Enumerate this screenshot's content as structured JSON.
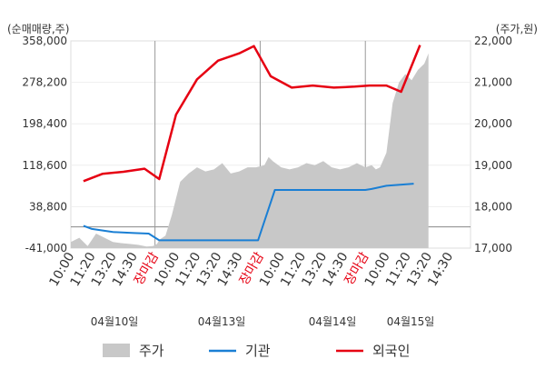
{
  "chart_data": {
    "type": "line",
    "y_left_unit": "(순매매량,주)",
    "y_right_unit": "(주가,원)",
    "y_left_ticks": [
      "358,000",
      "278,200",
      "198,400",
      "118,600",
      "38,800",
      "-41,000"
    ],
    "y_left_range": [
      -41000,
      358000
    ],
    "y_right_ticks": [
      "22,000",
      "21,000",
      "20,000",
      "19,000",
      "18,000",
      "17,000"
    ],
    "y_right_range": [
      17000,
      22000
    ],
    "x_ticks": [
      "10:00",
      "11:20",
      "13:20",
      "14:30",
      "장마감",
      "10:00",
      "11:20",
      "13:20",
      "14:30",
      "장마감",
      "10:00",
      "11:20",
      "13:20",
      "14:30",
      "장마감",
      "10:00",
      "11:20",
      "13:20",
      "14:30"
    ],
    "dates": [
      "04월10일",
      "04월13일",
      "04월14일",
      "04월15일"
    ],
    "legend": [
      "주가",
      "기관",
      "외국인"
    ],
    "colors": {
      "price": "#c8c8c8",
      "institution": "#1a7fd4",
      "foreign": "#e60012",
      "close_label": "#e60012"
    },
    "series": [
      {
        "name": "기관",
        "x": [
          0.6,
          1.0,
          2.0,
          3.0,
          3.7,
          4.2,
          5.0,
          6.0,
          7.0,
          8.0,
          8.9,
          9.7,
          10.5,
          12.0,
          13.0,
          14.0,
          14.3,
          15.0,
          16.3
        ],
        "values": [
          2000,
          -4000,
          -10000,
          -12000,
          -13000,
          -26000,
          -26000,
          -26000,
          -26000,
          -26000,
          -26000,
          71000,
          71000,
          71000,
          71000,
          71000,
          73000,
          79000,
          83000
        ]
      },
      {
        "name": "외국인",
        "x": [
          0.6,
          1.5,
          2.5,
          3.5,
          4.2,
          5.0,
          6.0,
          7.0,
          8.0,
          8.7,
          9.5,
          10.5,
          11.5,
          12.5,
          13.5,
          14.2,
          15.0,
          15.7,
          16.6
        ],
        "values": [
          88000,
          102000,
          106000,
          112000,
          92000,
          216000,
          284000,
          320000,
          334000,
          348000,
          290000,
          268000,
          272000,
          268000,
          270000,
          272000,
          272000,
          260000,
          350000
        ]
      },
      {
        "name": "주가",
        "x": [
          0.0,
          0.4,
          0.8,
          1.2,
          1.6,
          2.0,
          2.4,
          2.8,
          3.2,
          3.6,
          3.9,
          4.1,
          4.2,
          4.5,
          4.8,
          5.2,
          5.6,
          6.0,
          6.4,
          6.8,
          7.2,
          7.6,
          8.0,
          8.4,
          8.8,
          9.2,
          9.4,
          9.6,
          10.0,
          10.4,
          10.8,
          11.2,
          11.6,
          12.0,
          12.4,
          12.8,
          13.2,
          13.6,
          14.0,
          14.3,
          14.5,
          14.7,
          15.0,
          15.3,
          15.6,
          15.9,
          16.2,
          16.5,
          16.8,
          17.0
        ],
        "values": [
          17150,
          17250,
          17050,
          17350,
          17250,
          17150,
          17120,
          17100,
          17080,
          17040,
          17050,
          17100,
          17200,
          17300,
          17800,
          18600,
          18800,
          18950,
          18850,
          18900,
          19050,
          18800,
          18850,
          18950,
          18950,
          19000,
          19200,
          19100,
          18950,
          18900,
          18950,
          19050,
          19000,
          19100,
          18950,
          18900,
          18950,
          19050,
          18950,
          19000,
          18900,
          18950,
          19300,
          20500,
          21000,
          21200,
          21050,
          21300,
          21450,
          21700
        ]
      }
    ],
    "x_range": [
      0,
      19
    ]
  }
}
